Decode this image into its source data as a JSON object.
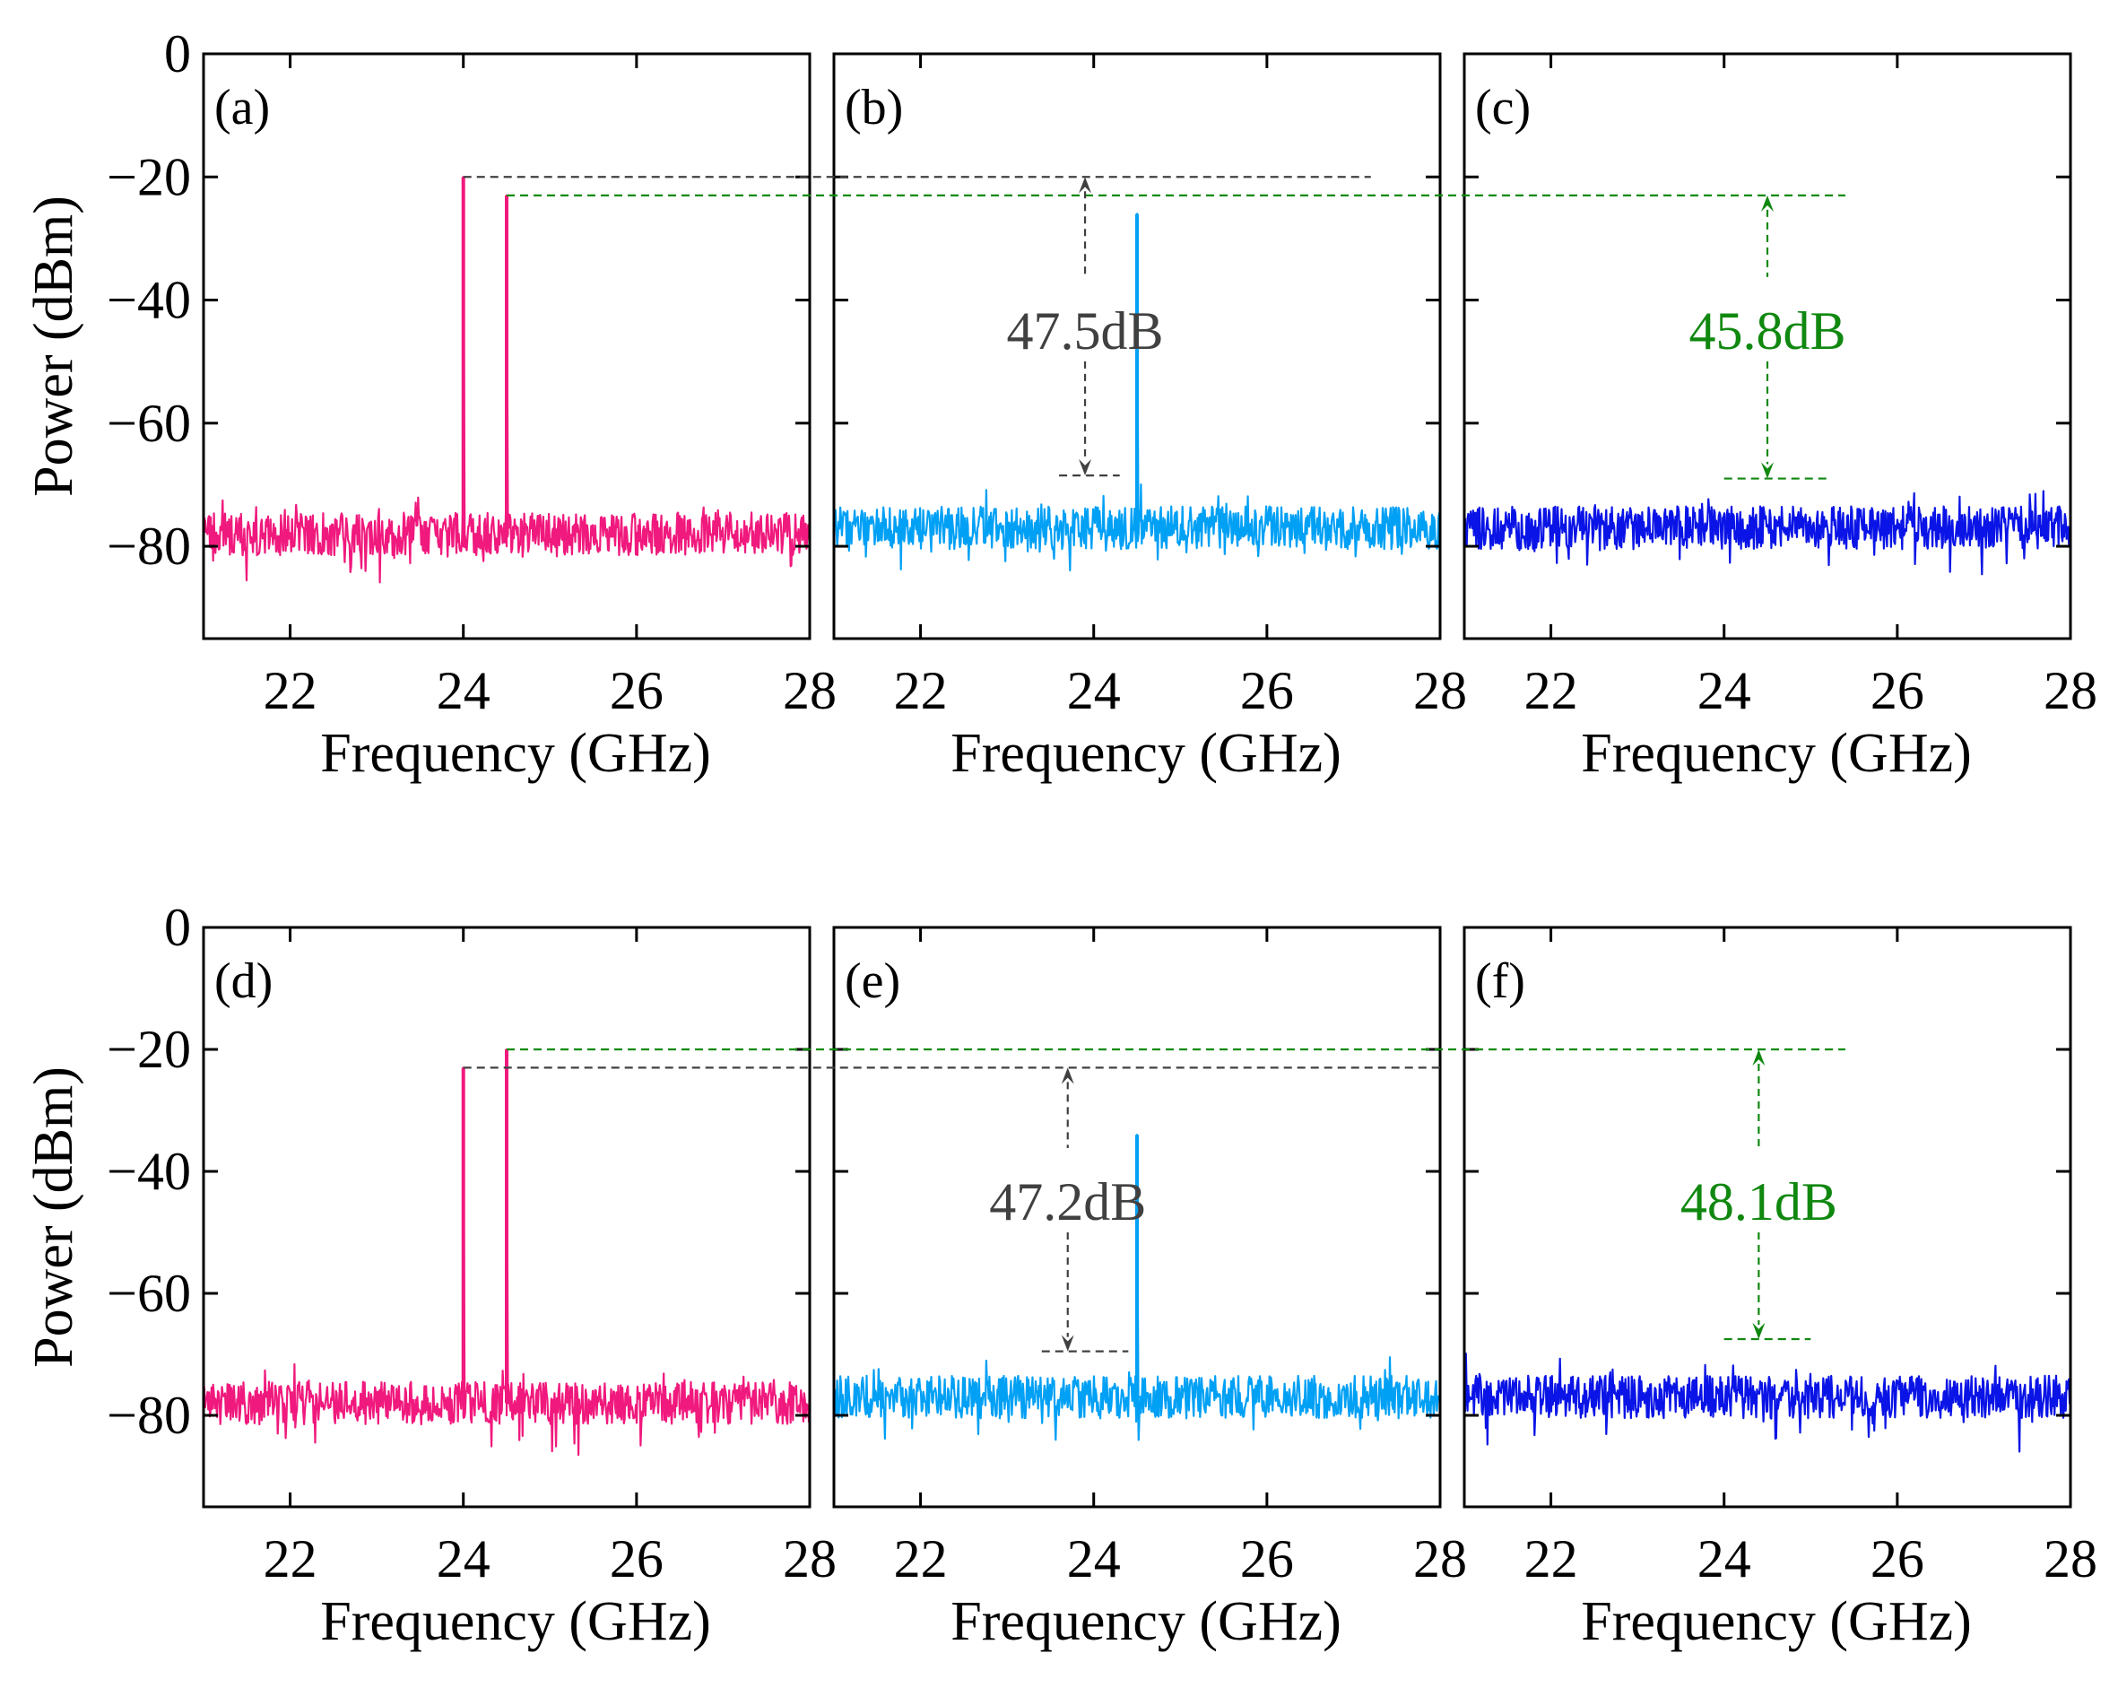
{
  "colors": {
    "panel_a": "#f0197d",
    "panel_b": "#00a0f5",
    "panel_c": "#0a14e6",
    "ref_gray": "#404040",
    "ref_green": "#0a8a0a",
    "annot_gray": "#404040",
    "annot_green": "#108810"
  },
  "chart_data": [
    {
      "type": "line",
      "panel": "(a)",
      "row": 1,
      "xlabel": "Frequency (GHz)",
      "ylabel": "Power (dBm)",
      "xlim": [
        21,
        28
      ],
      "ylim": [
        -95,
        0
      ],
      "xticks": [
        "22",
        "24",
        "26",
        "28"
      ],
      "yticks": [
        "0",
        "−20",
        "−40",
        "−60",
        "−80"
      ],
      "noise_floor": -78,
      "color_key": "panel_a",
      "peaks": [
        {
          "freq": 24.0,
          "power": -20
        },
        {
          "freq": 24.5,
          "power": -23
        }
      ],
      "reference_lines": [
        {
          "color_key": "ref_gray",
          "y": -20,
          "x_from": 24.0,
          "x_to": 27.2,
          "panel_to": "(b)"
        },
        {
          "color_key": "ref_green",
          "y": -23,
          "x_from": 24.5,
          "x_to": 25.4,
          "panel_to": "(c)"
        }
      ]
    },
    {
      "type": "line",
      "panel": "(b)",
      "row": 1,
      "xlabel": "Frequency (GHz)",
      "xlim": [
        21,
        28
      ],
      "ylim": [
        -95,
        0
      ],
      "xticks": [
        "22",
        "24",
        "26",
        "28"
      ],
      "noise_floor": -77,
      "color_key": "panel_b",
      "peaks": [
        {
          "freq": 24.5,
          "power": -26
        }
      ],
      "measurement": {
        "label": "47.5dB",
        "color_key": "annot_gray",
        "x": 23.9,
        "y_top": -20,
        "y_bottom": -68.5,
        "floor_x": [
          23.6,
          24.3
        ]
      }
    },
    {
      "type": "line",
      "panel": "(c)",
      "row": 1,
      "xlabel": "Frequency (GHz)",
      "xlim": [
        21,
        28
      ],
      "ylim": [
        -95,
        0
      ],
      "xticks": [
        "22",
        "24",
        "26",
        "28"
      ],
      "noise_floor": -77,
      "color_key": "panel_c",
      "peaks": [],
      "measurement": {
        "label": "45.8dB",
        "color_key": "annot_green",
        "x": 24.5,
        "y_top": -23,
        "y_bottom": -69,
        "floor_x": [
          24.0,
          25.2
        ]
      }
    },
    {
      "type": "line",
      "panel": "(d)",
      "row": 2,
      "xlabel": "Frequency (GHz)",
      "ylabel": "Power (dBm)",
      "xlim": [
        21,
        28
      ],
      "ylim": [
        -95,
        0
      ],
      "xticks": [
        "22",
        "24",
        "26",
        "28"
      ],
      "yticks": [
        "0",
        "−20",
        "−40",
        "−60",
        "−80"
      ],
      "noise_floor": -78,
      "color_key": "panel_a",
      "peaks": [
        {
          "freq": 24.0,
          "power": -23
        },
        {
          "freq": 24.5,
          "power": -20
        }
      ],
      "reference_lines": [
        {
          "color_key": "ref_gray",
          "y": -23,
          "x_from": 24.0,
          "x_to": 28.0,
          "panel_to": "(e)"
        },
        {
          "color_key": "ref_green",
          "y": -20,
          "x_from": 24.5,
          "x_to": 25.4,
          "panel_to": "(f)"
        }
      ]
    },
    {
      "type": "line",
      "panel": "(e)",
      "row": 2,
      "xlabel": "Frequency (GHz)",
      "xlim": [
        21,
        28
      ],
      "ylim": [
        -95,
        0
      ],
      "xticks": [
        "22",
        "24",
        "26",
        "28"
      ],
      "noise_floor": -77,
      "color_key": "panel_b",
      "peaks": [
        {
          "freq": 24.5,
          "power": -34
        }
      ],
      "measurement": {
        "label": "47.2dB",
        "color_key": "annot_gray",
        "x": 23.7,
        "y_top": -23,
        "y_bottom": -69.5,
        "floor_x": [
          23.4,
          24.4
        ]
      }
    },
    {
      "type": "line",
      "panel": "(f)",
      "row": 2,
      "xlabel": "Frequency (GHz)",
      "xlim": [
        21,
        28
      ],
      "ylim": [
        -95,
        0
      ],
      "xticks": [
        "22",
        "24",
        "26",
        "28"
      ],
      "noise_floor": -77,
      "color_key": "panel_c",
      "peaks": [],
      "measurement": {
        "label": "48.1dB",
        "color_key": "annot_green",
        "x": 24.4,
        "y_top": -20,
        "y_bottom": -67.5,
        "floor_x": [
          24.0,
          25.0
        ]
      }
    }
  ]
}
